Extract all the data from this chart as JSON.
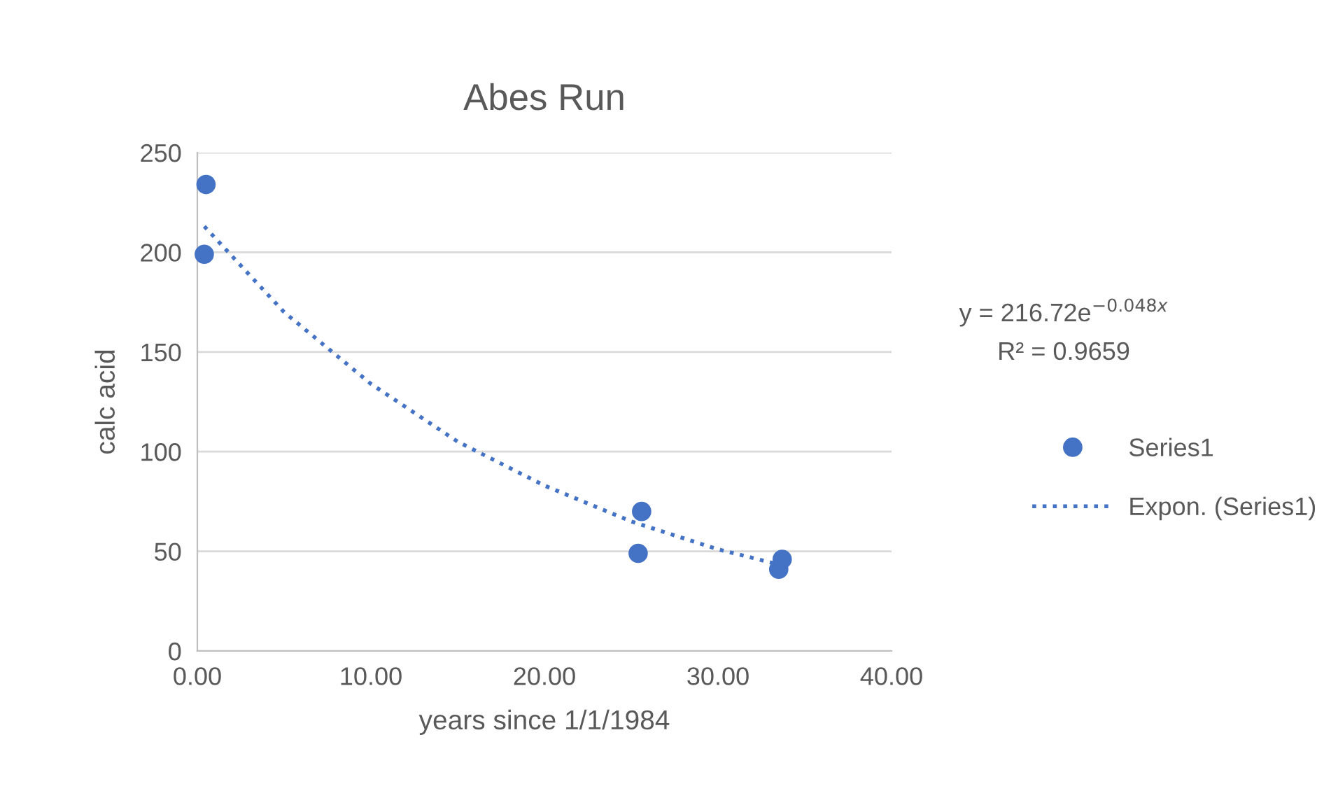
{
  "chart_data": {
    "type": "scatter",
    "title": "Abes Run",
    "xlabel": "years since 1/1/1984",
    "ylabel": "calc acid",
    "series": [
      {
        "name": "Series1",
        "color": "#4472c4",
        "marker": "circle",
        "x": [
          0.4,
          0.5,
          25.4,
          25.6,
          33.5,
          33.7
        ],
        "values": [
          199,
          234,
          49,
          70,
          41,
          46
        ]
      },
      {
        "name": "Expon. (Series1)",
        "type": "line",
        "color": "#4472c4",
        "line_style": "dotted",
        "marker": "none",
        "x": [
          0.4,
          5,
          10,
          15,
          20,
          25,
          30,
          33.7
        ],
        "values": [
          213,
          170,
          134,
          105,
          83,
          65,
          51,
          43
        ]
      }
    ],
    "annotations": [
      "y = 216.72e$^{−0.048x}$",
      "R² = 0.9659"
    ],
    "xlim": [
      0,
      40
    ],
    "xticks": [
      {
        "value": 0,
        "label": "0.00"
      },
      {
        "value": 10,
        "label": "10.00"
      },
      {
        "value": 20,
        "label": "20.00"
      },
      {
        "value": 30,
        "label": "30.00"
      },
      {
        "value": 40,
        "label": "40.00"
      }
    ],
    "ylim": [
      0,
      250
    ],
    "yticks": [
      0,
      50,
      100,
      150,
      200,
      250
    ],
    "grid": "y",
    "legend": "right"
  }
}
